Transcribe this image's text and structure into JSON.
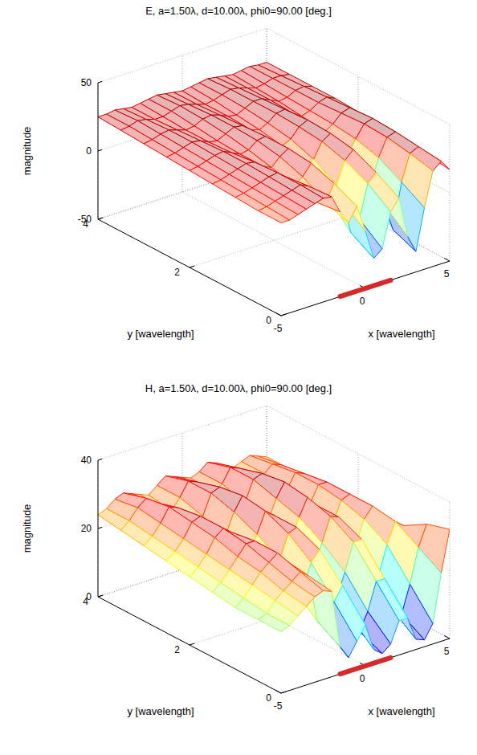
{
  "chart_data": [
    {
      "type": "surface",
      "title": "E, a=1.50λ, d=10.00λ, phi0=90.00 [deg.]",
      "x_label": "x [wavelength]",
      "y_label": "y [wavelength]",
      "z_label": "magnitude",
      "xlim": [
        -5,
        5
      ],
      "ylim": [
        0,
        4
      ],
      "zlim": [
        -50,
        50
      ],
      "xticks": [
        -5,
        0,
        5
      ],
      "yticks": [
        0,
        2,
        4
      ],
      "zticks": [
        -50,
        0,
        50
      ],
      "grid": true,
      "color_range": [
        -35,
        30
      ],
      "strip": [
        -1.5,
        1.5
      ],
      "x": [
        -5,
        -4.5,
        -4,
        -3.5,
        -3,
        -2.5,
        -2,
        -1.5,
        -1,
        -0.5,
        0,
        0.5,
        1,
        1.5,
        2,
        2.5,
        3,
        3.5,
        4,
        4.5,
        5
      ],
      "y": [
        0,
        0.5,
        1,
        1.5,
        2,
        2.5,
        3,
        3.5,
        4
      ],
      "z": [
        [
          18,
          18,
          20,
          22,
          24,
          26,
          25,
          12,
          2,
          12,
          -8,
          -30,
          -25,
          0,
          8,
          -22,
          -35,
          -5,
          20,
          25,
          17
        ],
        [
          18,
          19,
          21,
          23,
          25,
          27,
          24,
          10,
          8,
          20,
          5,
          -20,
          -12,
          12,
          18,
          -8,
          -28,
          5,
          24,
          27,
          19
        ],
        [
          19,
          20,
          22,
          24,
          26,
          27,
          22,
          14,
          18,
          26,
          14,
          -2,
          4,
          20,
          26,
          10,
          -5,
          14,
          27,
          29,
          21
        ],
        [
          20,
          21,
          23,
          25,
          27,
          26,
          21,
          18,
          24,
          28,
          19,
          10,
          14,
          25,
          29,
          18,
          10,
          19,
          28,
          30,
          23
        ],
        [
          21,
          22,
          24,
          26,
          27,
          24,
          21,
          22,
          27,
          28,
          21,
          17,
          20,
          27,
          30,
          22,
          17,
          21,
          27,
          29,
          24
        ],
        [
          22,
          23,
          25,
          27,
          26,
          23,
          22,
          25,
          28,
          27,
          22,
          20,
          23,
          28,
          29,
          24,
          20,
          22,
          26,
          28,
          25
        ],
        [
          23,
          24,
          26,
          27,
          25,
          23,
          24,
          27,
          28,
          26,
          23,
          22,
          25,
          28,
          28,
          25,
          22,
          23,
          26,
          27,
          25
        ],
        [
          24,
          25,
          27,
          26,
          24,
          24,
          26,
          28,
          27,
          25,
          23,
          24,
          26,
          28,
          27,
          25,
          23,
          24,
          26,
          26,
          25
        ],
        [
          25,
          25,
          26,
          25,
          24,
          25,
          26,
          27,
          26,
          25,
          24,
          25,
          26,
          27,
          26,
          25,
          24,
          25,
          26,
          25,
          25
        ]
      ]
    },
    {
      "type": "surface",
      "title": "H, a=1.50λ, d=10.00λ, phi0=90.00 [deg.]",
      "x_label": "x [wavelength]",
      "y_label": "y [wavelength]",
      "z_label": "magnitude",
      "xlim": [
        -5,
        5
      ],
      "ylim": [
        0,
        4
      ],
      "zlim": [
        0,
        40
      ],
      "xticks": [
        -5,
        0,
        5
      ],
      "yticks": [
        0,
        2,
        4
      ],
      "zticks": [
        0,
        20,
        40
      ],
      "grid": true,
      "color_range": [
        2,
        33
      ],
      "strip": [
        -1.5,
        1.5
      ],
      "x": [
        -5,
        -4.5,
        -4,
        -3.5,
        -3,
        -2.5,
        -2,
        -1.5,
        -1,
        -0.5,
        0,
        0.5,
        1,
        1.5,
        2,
        2.5,
        3,
        3.5,
        4,
        4.5,
        5
      ],
      "y": [
        0,
        0.5,
        1,
        1.5,
        2,
        2.5,
        3,
        3.5,
        4
      ],
      "z": [
        [
          18,
          19,
          21,
          23,
          25,
          26,
          25,
          8,
          4,
          8,
          12,
          4,
          2,
          4,
          10,
          10,
          3,
          2,
          6,
          20,
          32
        ],
        [
          18,
          19,
          22,
          24,
          26,
          28,
          26,
          12,
          9,
          16,
          20,
          10,
          5,
          10,
          18,
          18,
          8,
          6,
          14,
          24,
          30
        ],
        [
          18,
          20,
          23,
          26,
          28,
          30,
          27,
          18,
          17,
          24,
          27,
          17,
          11,
          18,
          26,
          26,
          15,
          14,
          22,
          28,
          26
        ],
        [
          19,
          21,
          24,
          27,
          30,
          30,
          25,
          20,
          22,
          29,
          30,
          21,
          16,
          23,
          30,
          29,
          19,
          19,
          26,
          29,
          25
        ],
        [
          20,
          22,
          25,
          29,
          31,
          29,
          23,
          21,
          26,
          32,
          30,
          22,
          20,
          27,
          32,
          29,
          21,
          22,
          28,
          29,
          25
        ],
        [
          21,
          23,
          26,
          30,
          31,
          27,
          22,
          23,
          29,
          33,
          29,
          23,
          23,
          29,
          33,
          28,
          22,
          24,
          29,
          29,
          25
        ],
        [
          22,
          24,
          27,
          31,
          30,
          26,
          23,
          25,
          31,
          32,
          28,
          24,
          25,
          31,
          32,
          27,
          23,
          25,
          29,
          28,
          25
        ],
        [
          23,
          25,
          28,
          30,
          28,
          25,
          24,
          27,
          31,
          30,
          27,
          25,
          27,
          31,
          30,
          26,
          24,
          26,
          28,
          27,
          25
        ],
        [
          24,
          25,
          27,
          28,
          27,
          26,
          25,
          27,
          29,
          28,
          27,
          26,
          27,
          29,
          28,
          26,
          25,
          26,
          27,
          26,
          25
        ]
      ]
    }
  ]
}
